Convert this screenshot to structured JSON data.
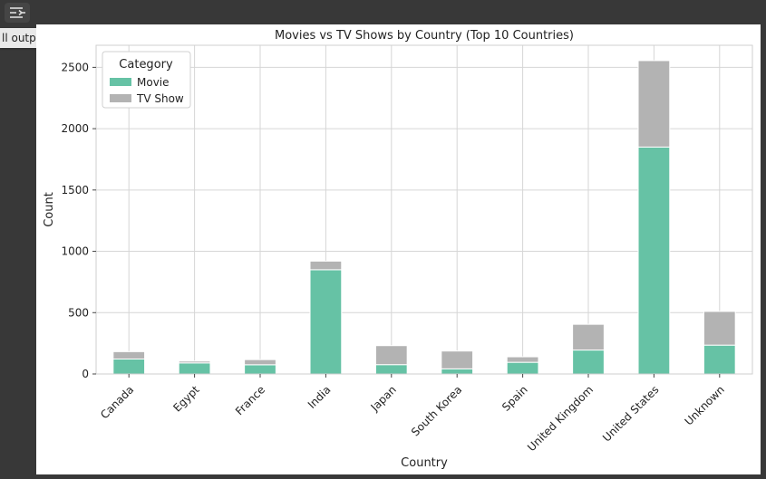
{
  "toolbar": {
    "collapse_icon": "collapse-output-icon",
    "tooltip": "ll output actions"
  },
  "colors": {
    "movie": "#66c2a5",
    "tv_show": "#b3b3b3",
    "grid": "#d6d6d6"
  },
  "chart_data": {
    "type": "bar",
    "stacked": true,
    "title": "Movies vs TV Shows by Country (Top 10 Countries)",
    "xlabel": "Country",
    "ylabel": "Count",
    "ylim": [
      0,
      2680
    ],
    "yticks": [
      0,
      500,
      1000,
      1500,
      2000,
      2500
    ],
    "grid": true,
    "legend": {
      "title": "Category",
      "placement": "top-left"
    },
    "categories": [
      "Canada",
      "Egypt",
      "France",
      "India",
      "Japan",
      "South Korea",
      "Spain",
      "United Kingdom",
      "United States",
      "Unknown"
    ],
    "series": [
      {
        "name": "Movie",
        "values": [
          122,
          90,
          75,
          850,
          76,
          42,
          95,
          195,
          1850,
          235
        ]
      },
      {
        "name": "TV Show",
        "values": [
          60,
          15,
          42,
          70,
          155,
          145,
          45,
          210,
          705,
          275
        ]
      }
    ]
  }
}
